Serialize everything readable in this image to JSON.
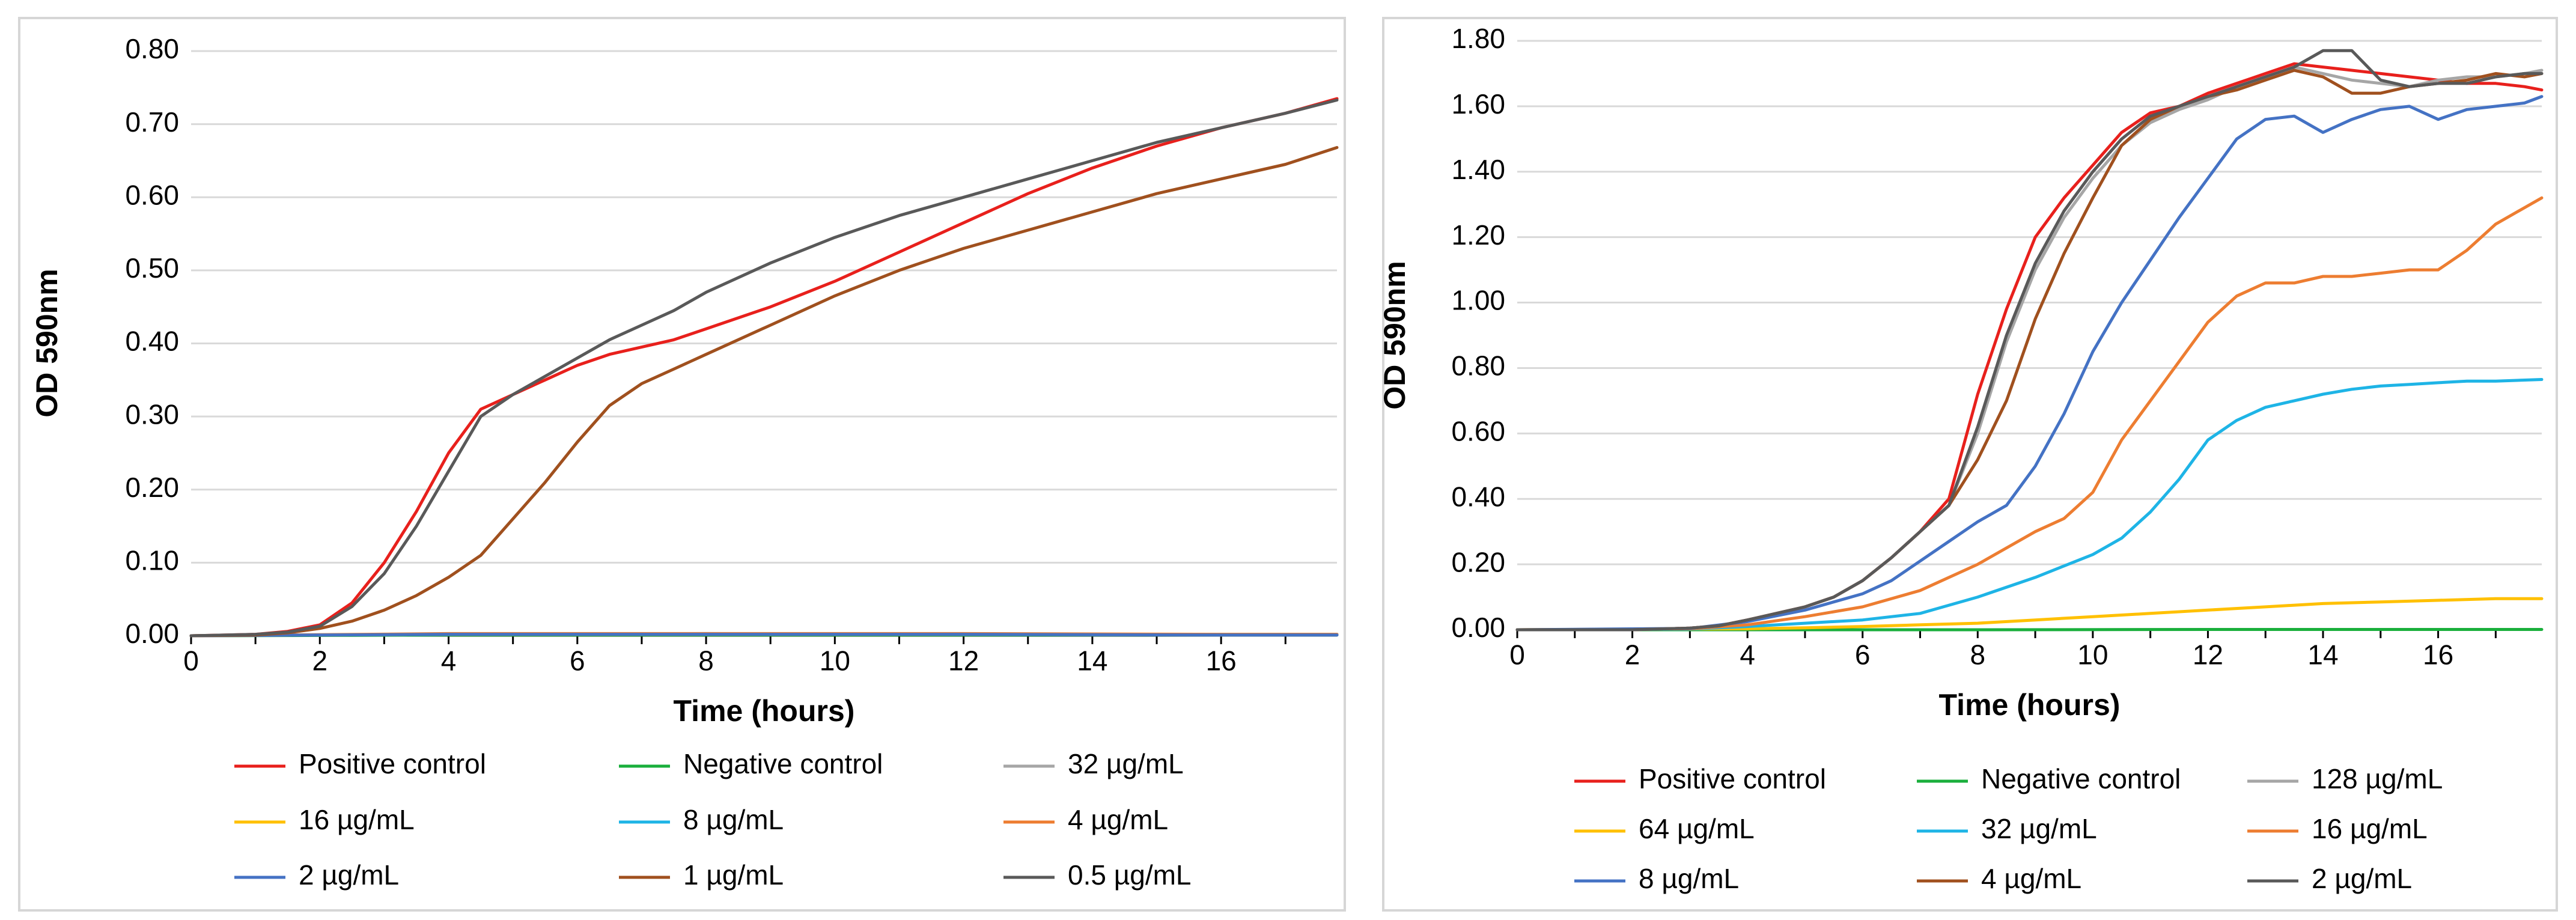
{
  "chart_data": [
    {
      "type": "line",
      "xlabel": "Time (hours)",
      "ylabel": "OD 590nm",
      "xlim": [
        0,
        17.8
      ],
      "ylim": [
        0,
        0.8
      ],
      "xticks": [
        "0",
        "2",
        "4",
        "6",
        "8",
        "10",
        "12",
        "14",
        "16"
      ],
      "xtick_values": [
        0,
        2,
        4,
        6,
        8,
        10,
        12,
        14,
        16
      ],
      "yticks": [
        "0.00",
        "0.10",
        "0.20",
        "0.30",
        "0.40",
        "0.50",
        "0.60",
        "0.70",
        "0.80"
      ],
      "ytick_values": [
        0,
        0.1,
        0.2,
        0.3,
        0.4,
        0.5,
        0.6,
        0.7,
        0.8
      ],
      "grid": true,
      "legend_position": "bottom",
      "series": [
        {
          "name": "Positive control",
          "color": "#e8201c",
          "x": [
            0,
            1,
            1.5,
            2,
            2.5,
            3,
            3.5,
            4,
            4.5,
            5,
            5.5,
            6,
            6.5,
            7,
            7.5,
            8,
            9,
            10,
            11,
            12,
            13,
            14,
            15,
            16,
            17,
            17.8
          ],
          "y": [
            0,
            0.002,
            0.006,
            0.015,
            0.045,
            0.1,
            0.17,
            0.25,
            0.31,
            0.33,
            0.35,
            0.37,
            0.385,
            0.395,
            0.405,
            0.42,
            0.45,
            0.485,
            0.525,
            0.565,
            0.605,
            0.64,
            0.67,
            0.695,
            0.715,
            0.735
          ]
        },
        {
          "name": "Negative control",
          "color": "#1aaf3c",
          "x": [
            0,
            4,
            8,
            12,
            16,
            17.8
          ],
          "y": [
            0,
            0.001,
            0.001,
            0.001,
            0.001,
            0.001
          ]
        },
        {
          "name": "32 µg/mL",
          "color": "#a6a6a6",
          "x": [
            0,
            4,
            8,
            12,
            16,
            17.8
          ],
          "y": [
            0,
            0.002,
            0.002,
            0.002,
            0.001,
            0.001
          ]
        },
        {
          "name": "16 µg/mL",
          "color": "#ffc000",
          "x": [
            0,
            4,
            8,
            12,
            16,
            17.8
          ],
          "y": [
            0,
            0.002,
            0.002,
            0.002,
            0.002,
            0.002
          ]
        },
        {
          "name": "8 µg/mL",
          "color": "#1eb4e6",
          "x": [
            0,
            4,
            8,
            12,
            16,
            17.8
          ],
          "y": [
            0,
            0.002,
            0.003,
            0.002,
            0.002,
            0.002
          ]
        },
        {
          "name": "4 µg/mL",
          "color": "#ed7d31",
          "x": [
            0,
            4,
            8,
            12,
            16,
            17.8
          ],
          "y": [
            0,
            0.003,
            0.003,
            0.003,
            0.002,
            0.002
          ]
        },
        {
          "name": "2 µg/mL",
          "color": "#4472c4",
          "x": [
            0,
            4,
            8,
            12,
            16,
            17.8
          ],
          "y": [
            0,
            0.002,
            0.002,
            0.002,
            0.001,
            0.001
          ]
        },
        {
          "name": "1 µg/mL",
          "color": "#a0501e",
          "x": [
            0,
            1,
            1.5,
            2,
            2.5,
            3,
            3.5,
            4,
            4.5,
            5,
            5.5,
            6,
            6.5,
            7,
            7.5,
            8,
            9,
            10,
            11,
            12,
            13,
            14,
            15,
            16,
            17,
            17.8
          ],
          "y": [
            0,
            0.001,
            0.004,
            0.01,
            0.02,
            0.035,
            0.055,
            0.08,
            0.11,
            0.16,
            0.21,
            0.265,
            0.315,
            0.345,
            0.365,
            0.385,
            0.425,
            0.465,
            0.5,
            0.53,
            0.555,
            0.58,
            0.605,
            0.625,
            0.645,
            0.668
          ]
        },
        {
          "name": "0.5 µg/mL",
          "color": "#595959",
          "x": [
            0,
            1,
            1.5,
            2,
            2.5,
            3,
            3.5,
            4,
            4.5,
            5,
            5.5,
            6,
            6.5,
            7,
            7.5,
            8,
            9,
            10,
            11,
            12,
            13,
            14,
            15,
            16,
            17,
            17.8
          ],
          "y": [
            0,
            0.002,
            0.005,
            0.013,
            0.04,
            0.085,
            0.15,
            0.225,
            0.3,
            0.33,
            0.355,
            0.38,
            0.405,
            0.425,
            0.445,
            0.47,
            0.51,
            0.545,
            0.575,
            0.6,
            0.625,
            0.65,
            0.675,
            0.695,
            0.715,
            0.733
          ]
        }
      ]
    },
    {
      "type": "line",
      "xlabel": "Time (hours)",
      "ylabel": "OD 590nm",
      "xlim": [
        0,
        17.8
      ],
      "ylim": [
        0,
        1.8
      ],
      "xticks": [
        "0",
        "2",
        "4",
        "6",
        "8",
        "10",
        "12",
        "14",
        "16"
      ],
      "xtick_values": [
        0,
        2,
        4,
        6,
        8,
        10,
        12,
        14,
        16
      ],
      "yticks": [
        "0.00",
        "0.20",
        "0.40",
        "0.60",
        "0.80",
        "1.00",
        "1.20",
        "1.40",
        "1.60",
        "1.80"
      ],
      "ytick_values": [
        0,
        0.2,
        0.4,
        0.6,
        0.8,
        1.0,
        1.2,
        1.4,
        1.6,
        1.8
      ],
      "grid": true,
      "legend_position": "bottom",
      "series": [
        {
          "name": "Positive control",
          "color": "#e8201c",
          "x": [
            0,
            2,
            3,
            3.5,
            4,
            4.5,
            5,
            5.5,
            6,
            6.5,
            7,
            7.5,
            8,
            8.5,
            9,
            9.5,
            10,
            10.5,
            11,
            11.5,
            12,
            12.5,
            13,
            13.5,
            14,
            14.5,
            15,
            15.5,
            16,
            16.5,
            17,
            17.5,
            17.8
          ],
          "y": [
            0,
            0,
            0.005,
            0.012,
            0.03,
            0.05,
            0.07,
            0.1,
            0.15,
            0.22,
            0.3,
            0.4,
            0.72,
            0.98,
            1.2,
            1.32,
            1.42,
            1.52,
            1.58,
            1.6,
            1.64,
            1.67,
            1.7,
            1.73,
            1.72,
            1.71,
            1.7,
            1.69,
            1.68,
            1.67,
            1.67,
            1.66,
            1.65
          ]
        },
        {
          "name": "Negative control",
          "color": "#1aaf3c",
          "x": [
            0,
            4,
            8,
            12,
            16,
            17.8
          ],
          "y": [
            0,
            0,
            0,
            0.001,
            0.001,
            0.001
          ]
        },
        {
          "name": "128 µg/mL",
          "color": "#a6a6a6",
          "x": [
            0,
            2,
            3,
            3.5,
            4,
            4.5,
            5,
            5.5,
            6,
            6.5,
            7,
            7.5,
            8,
            8.5,
            9,
            9.5,
            10,
            10.5,
            11,
            11.5,
            12,
            12.5,
            13,
            13.5,
            14,
            14.5,
            15,
            15.5,
            16,
            16.5,
            17,
            17.5,
            17.8
          ],
          "y": [
            0,
            0,
            0.005,
            0.012,
            0.03,
            0.05,
            0.07,
            0.1,
            0.15,
            0.22,
            0.3,
            0.38,
            0.6,
            0.88,
            1.1,
            1.26,
            1.38,
            1.48,
            1.55,
            1.59,
            1.62,
            1.66,
            1.69,
            1.72,
            1.7,
            1.68,
            1.67,
            1.66,
            1.68,
            1.69,
            1.69,
            1.7,
            1.71
          ]
        },
        {
          "name": "64 µg/mL",
          "color": "#ffc000",
          "x": [
            0,
            4,
            5,
            6,
            7,
            8,
            9,
            10,
            11,
            12,
            13,
            14,
            15,
            16,
            17,
            17.8
          ],
          "y": [
            0,
            0.003,
            0.006,
            0.01,
            0.015,
            0.02,
            0.03,
            0.04,
            0.05,
            0.06,
            0.07,
            0.08,
            0.085,
            0.09,
            0.095,
            0.095
          ]
        },
        {
          "name": "32 µg/mL",
          "color": "#1eb4e6",
          "x": [
            0,
            3,
            4,
            5,
            6,
            7,
            8,
            9,
            10,
            10.5,
            11,
            11.5,
            12,
            12.5,
            13,
            13.5,
            14,
            14.5,
            15,
            15.5,
            16,
            16.5,
            17,
            17.8
          ],
          "y": [
            0,
            0.002,
            0.01,
            0.02,
            0.03,
            0.05,
            0.1,
            0.16,
            0.23,
            0.28,
            0.36,
            0.46,
            0.58,
            0.64,
            0.68,
            0.7,
            0.72,
            0.735,
            0.745,
            0.75,
            0.755,
            0.76,
            0.76,
            0.765
          ]
        },
        {
          "name": "16 µg/mL",
          "color": "#ed7d31",
          "x": [
            0,
            3,
            4,
            5,
            6,
            7,
            8,
            9,
            9.5,
            10,
            10.5,
            11,
            11.5,
            12,
            12.5,
            13,
            13.5,
            14,
            14.5,
            15,
            15.5,
            16,
            16.5,
            17,
            17.8
          ],
          "y": [
            0,
            0.003,
            0.015,
            0.04,
            0.07,
            0.12,
            0.2,
            0.3,
            0.34,
            0.42,
            0.58,
            0.7,
            0.82,
            0.94,
            1.02,
            1.06,
            1.06,
            1.08,
            1.08,
            1.09,
            1.1,
            1.1,
            1.16,
            1.24,
            1.32
          ]
        },
        {
          "name": "8 µg/mL",
          "color": "#4472c4",
          "x": [
            0,
            3,
            4,
            5,
            6,
            6.5,
            7,
            7.5,
            8,
            8.5,
            9,
            9.5,
            10,
            10.5,
            11,
            11.5,
            12,
            12.5,
            13,
            13.5,
            14,
            14.5,
            15,
            15.5,
            16,
            16.5,
            17,
            17.5,
            17.8
          ],
          "y": [
            0,
            0.004,
            0.025,
            0.06,
            0.11,
            0.15,
            0.21,
            0.27,
            0.33,
            0.38,
            0.5,
            0.66,
            0.85,
            1.0,
            1.13,
            1.26,
            1.38,
            1.5,
            1.56,
            1.57,
            1.52,
            1.56,
            1.59,
            1.6,
            1.56,
            1.59,
            1.6,
            1.61,
            1.63
          ]
        },
        {
          "name": "4 µg/mL",
          "color": "#a0501e",
          "x": [
            0,
            2,
            3,
            3.5,
            4,
            4.5,
            5,
            5.5,
            6,
            6.5,
            7,
            7.5,
            8,
            8.5,
            9,
            9.5,
            10,
            10.5,
            11,
            11.5,
            12,
            12.5,
            13,
            13.5,
            14,
            14.5,
            15,
            15.5,
            16,
            16.5,
            17,
            17.5,
            17.8
          ],
          "y": [
            0,
            0,
            0.005,
            0.012,
            0.03,
            0.05,
            0.07,
            0.1,
            0.15,
            0.22,
            0.3,
            0.38,
            0.52,
            0.7,
            0.95,
            1.15,
            1.32,
            1.48,
            1.56,
            1.6,
            1.63,
            1.65,
            1.68,
            1.71,
            1.69,
            1.64,
            1.64,
            1.66,
            1.67,
            1.68,
            1.7,
            1.69,
            1.7
          ]
        },
        {
          "name": "2 µg/mL",
          "color": "#595959",
          "x": [
            0,
            2,
            3,
            3.5,
            4,
            4.5,
            5,
            5.5,
            6,
            6.5,
            7,
            7.5,
            8,
            8.5,
            9,
            9.5,
            10,
            10.5,
            11,
            11.5,
            12,
            12.5,
            13,
            13.5,
            14,
            14.5,
            15,
            15.5,
            16,
            16.5,
            17,
            17.5,
            17.8
          ],
          "y": [
            0,
            0,
            0.005,
            0.012,
            0.03,
            0.05,
            0.07,
            0.1,
            0.15,
            0.22,
            0.3,
            0.38,
            0.62,
            0.9,
            1.12,
            1.28,
            1.4,
            1.5,
            1.57,
            1.6,
            1.63,
            1.66,
            1.69,
            1.72,
            1.77,
            1.77,
            1.68,
            1.66,
            1.67,
            1.67,
            1.69,
            1.7,
            1.7
          ]
        }
      ]
    }
  ]
}
